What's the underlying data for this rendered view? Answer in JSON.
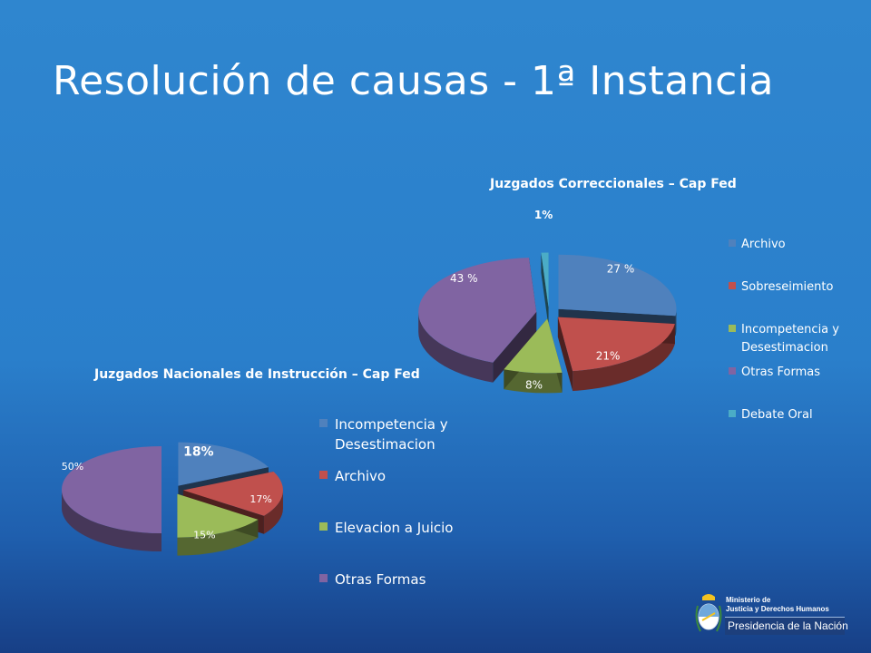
{
  "page": {
    "title": "Resolución de causas - 1ª Instancia"
  },
  "chart_data": [
    {
      "type": "pie",
      "style": "3d-exploded",
      "title": "Juzgados Correccionales – Cap Fed",
      "legend_position": "right",
      "slices": [
        {
          "name": "Archivo",
          "value": 27,
          "label": "27 %",
          "color": "#4f81bd"
        },
        {
          "name": "Sobreseimiento",
          "value": 21,
          "label": "21%",
          "color": "#c0504d"
        },
        {
          "name": "Incompetencia y Desestimacion",
          "value": 8,
          "label": "8%",
          "color": "#9bbb59"
        },
        {
          "name": "Otras Formas",
          "value": 43,
          "label": "43 %",
          "color": "#8064a2"
        },
        {
          "name": "Debate Oral",
          "value": 1,
          "label": "1%",
          "color": "#4bacc6"
        }
      ]
    },
    {
      "type": "pie",
      "style": "3d-exploded",
      "title": "Juzgados Nacionales de Instrucción – Cap Fed",
      "legend_position": "right",
      "slices": [
        {
          "name": "Incompetencia y Desestimacion",
          "value": 18,
          "label": "18%",
          "color": "#4f81bd"
        },
        {
          "name": "Archivo",
          "value": 17,
          "label": "17%",
          "color": "#c0504d"
        },
        {
          "name": "Elevacion a Juicio",
          "value": 15,
          "label": "15%",
          "color": "#9bbb59"
        },
        {
          "name": "Otras Formas",
          "value": 50,
          "label": "50%",
          "color": "#8064a2"
        }
      ]
    }
  ],
  "logo": {
    "line1": "Ministerio de",
    "line2": "Justicia y Derechos Humanos",
    "line3": "Presidencia de la Nación"
  }
}
